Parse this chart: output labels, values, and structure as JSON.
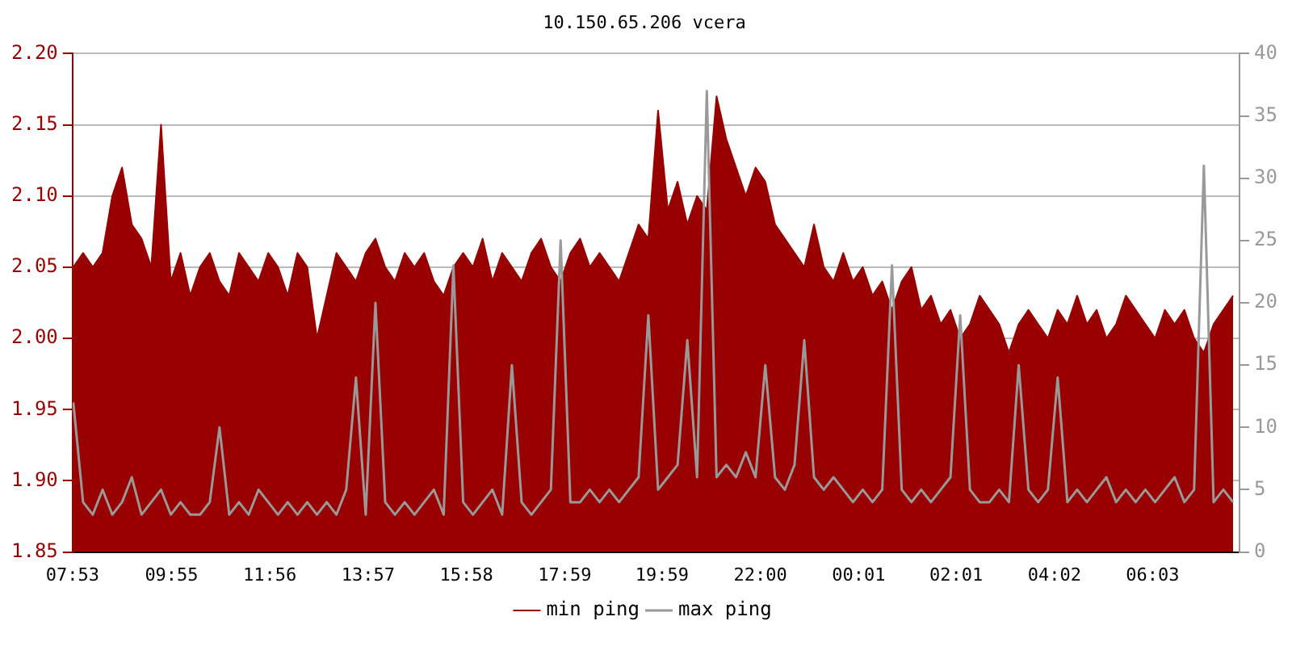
{
  "chart_data": {
    "type": "line",
    "title": "10.150.65.206 vcera",
    "x": [
      "2000-01-01T07:54",
      "2000-01-01T08:06",
      "2000-01-01T08:18",
      "2000-01-01T08:30",
      "2000-01-01T08:42",
      "2000-01-01T08:54",
      "2000-01-01T09:06",
      "2000-01-01T09:18",
      "2000-01-01T09:30",
      "2000-01-01T09:42",
      "2000-01-01T09:54",
      "2000-01-01T10:06",
      "2000-01-01T10:18",
      "2000-01-01T10:30",
      "2000-01-01T10:42",
      "2000-01-01T10:54",
      "2000-01-01T11:06",
      "2000-01-01T11:18",
      "2000-01-01T11:30",
      "2000-01-01T11:42",
      "2000-01-01T11:54",
      "2000-01-01T12:06",
      "2000-01-01T12:18",
      "2000-01-01T12:30",
      "2000-01-01T12:42",
      "2000-01-01T12:54",
      "2000-01-01T13:06",
      "2000-01-01T13:18",
      "2000-01-01T13:30",
      "2000-01-01T13:42",
      "2000-01-01T13:54",
      "2000-01-01T14:06",
      "2000-01-01T14:18",
      "2000-01-01T14:30",
      "2000-01-01T14:42",
      "2000-01-01T14:54",
      "2000-01-01T15:06",
      "2000-01-01T15:18",
      "2000-01-01T15:30",
      "2000-01-01T15:42",
      "2000-01-01T15:54",
      "2000-01-01T16:06",
      "2000-01-01T16:18",
      "2000-01-01T16:30",
      "2000-01-01T16:42",
      "2000-01-01T16:54",
      "2000-01-01T17:06",
      "2000-01-01T17:18",
      "2000-01-01T17:30",
      "2000-01-01T17:42",
      "2000-01-01T17:54",
      "2000-01-01T18:06",
      "2000-01-01T18:18",
      "2000-01-01T18:30",
      "2000-01-01T18:42",
      "2000-01-01T18:54",
      "2000-01-01T19:06",
      "2000-01-01T19:18",
      "2000-01-01T19:30",
      "2000-01-01T19:42",
      "2000-01-01T19:54",
      "2000-01-01T20:06",
      "2000-01-01T20:18",
      "2000-01-01T20:30",
      "2000-01-01T20:42",
      "2000-01-01T20:54",
      "2000-01-01T21:06",
      "2000-01-01T21:18",
      "2000-01-01T21:30",
      "2000-01-01T21:42",
      "2000-01-01T21:54",
      "2000-01-01T22:06",
      "2000-01-01T22:18",
      "2000-01-01T22:30",
      "2000-01-01T22:42",
      "2000-01-01T22:54",
      "2000-01-01T23:06",
      "2000-01-01T23:18",
      "2000-01-01T23:30",
      "2000-01-01T23:42",
      "2000-01-01T23:54",
      "2000-01-02T00:06",
      "2000-01-02T00:18",
      "2000-01-02T00:30",
      "2000-01-02T00:42",
      "2000-01-02T00:54",
      "2000-01-02T01:06",
      "2000-01-02T01:18",
      "2000-01-02T01:30",
      "2000-01-02T01:42",
      "2000-01-02T01:54",
      "2000-01-02T02:06",
      "2000-01-02T02:18",
      "2000-01-02T02:30",
      "2000-01-02T02:42",
      "2000-01-02T02:54",
      "2000-01-02T03:06",
      "2000-01-02T03:18",
      "2000-01-02T03:30",
      "2000-01-02T03:42",
      "2000-01-02T03:54",
      "2000-01-02T04:06",
      "2000-01-02T04:18",
      "2000-01-02T04:30",
      "2000-01-02T04:42",
      "2000-01-02T04:54",
      "2000-01-02T05:06",
      "2000-01-02T05:18",
      "2000-01-02T05:30",
      "2000-01-02T05:42",
      "2000-01-02T05:54",
      "2000-01-02T06:06",
      "2000-01-02T06:18",
      "2000-01-02T06:30",
      "2000-01-02T06:42",
      "2000-01-02T06:54",
      "2000-01-02T07:06",
      "2000-01-02T07:18",
      "2000-01-02T07:30",
      "2000-01-02T07:42"
    ],
    "series": [
      {
        "name": "min ping",
        "type": "area",
        "color": "#990000",
        "values": [
          2.05,
          2.06,
          2.05,
          2.06,
          2.1,
          2.12,
          2.08,
          2.07,
          2.05,
          2.15,
          2.04,
          2.06,
          2.03,
          2.05,
          2.06,
          2.04,
          2.03,
          2.06,
          2.05,
          2.04,
          2.06,
          2.05,
          2.03,
          2.06,
          2.05,
          2.0,
          2.03,
          2.06,
          2.05,
          2.04,
          2.06,
          2.07,
          2.05,
          2.04,
          2.06,
          2.05,
          2.06,
          2.04,
          2.03,
          2.05,
          2.06,
          2.05,
          2.07,
          2.04,
          2.06,
          2.05,
          2.04,
          2.06,
          2.07,
          2.05,
          2.04,
          2.06,
          2.07,
          2.05,
          2.06,
          2.05,
          2.04,
          2.06,
          2.08,
          2.07,
          2.16,
          2.09,
          2.11,
          2.08,
          2.1,
          2.09,
          2.17,
          2.14,
          2.12,
          2.1,
          2.12,
          2.11,
          2.08,
          2.07,
          2.06,
          2.05,
          2.08,
          2.05,
          2.04,
          2.06,
          2.04,
          2.05,
          2.03,
          2.04,
          2.02,
          2.04,
          2.05,
          2.02,
          2.03,
          2.01,
          2.02,
          2.0,
          2.01,
          2.03,
          2.02,
          2.01,
          1.99,
          2.01,
          2.02,
          2.01,
          2.0,
          2.02,
          2.01,
          2.03,
          2.01,
          2.02,
          2.0,
          2.01,
          2.03,
          2.02,
          2.01,
          2.0,
          2.02,
          2.01,
          2.02,
          2.0,
          1.99,
          2.01,
          2.02,
          2.03
        ]
      },
      {
        "name": "max ping",
        "type": "line",
        "axis": "y2",
        "color": "#999999",
        "values": [
          12,
          4,
          3,
          5,
          3,
          4,
          6,
          3,
          4,
          5,
          3,
          4,
          3,
          3,
          4,
          10,
          3,
          4,
          3,
          5,
          4,
          3,
          4,
          3,
          4,
          3,
          4,
          3,
          5,
          14,
          3,
          20,
          4,
          3,
          4,
          3,
          4,
          5,
          3,
          23,
          4,
          3,
          4,
          5,
          3,
          15,
          4,
          3,
          4,
          5,
          25,
          4,
          4,
          5,
          4,
          5,
          4,
          5,
          6,
          19,
          5,
          6,
          7,
          17,
          6,
          37,
          6,
          7,
          6,
          8,
          6,
          15,
          6,
          5,
          7,
          17,
          6,
          5,
          6,
          5,
          4,
          5,
          4,
          5,
          23,
          5,
          4,
          5,
          4,
          5,
          6,
          19,
          5,
          4,
          4,
          5,
          4,
          15,
          5,
          4,
          5,
          14,
          4,
          5,
          4,
          5,
          6,
          4,
          5,
          4,
          5,
          4,
          5,
          6,
          4,
          5,
          31,
          4,
          5,
          4
        ]
      }
    ],
    "xlim": [
      "2000-01-01T07:53",
      "2000-01-02T07:50"
    ],
    "xticks": [
      {
        "value": "2000-01-01T07:53",
        "label": "07:53"
      },
      {
        "value": "2000-01-01T09:55",
        "label": "09:55"
      },
      {
        "value": "2000-01-01T11:56",
        "label": "11:56"
      },
      {
        "value": "2000-01-01T13:57",
        "label": "13:57"
      },
      {
        "value": "2000-01-01T15:58",
        "label": "15:58"
      },
      {
        "value": "2000-01-01T17:59",
        "label": "17:59"
      },
      {
        "value": "2000-01-01T19:59",
        "label": "19:59"
      },
      {
        "value": "2000-01-01T22:00",
        "label": "22:00"
      },
      {
        "value": "2000-01-02T00:01",
        "label": "00:01"
      },
      {
        "value": "2000-01-02T02:01",
        "label": "02:01"
      },
      {
        "value": "2000-01-02T04:02",
        "label": "04:02"
      },
      {
        "value": "2000-01-02T06:03",
        "label": "06:03"
      }
    ],
    "ylim": [
      1.85,
      2.2
    ],
    "yticks": [
      {
        "value": 1.85,
        "label": "1.85"
      },
      {
        "value": 1.9,
        "label": "1.90"
      },
      {
        "value": 1.95,
        "label": "1.95"
      },
      {
        "value": 2.0,
        "label": "2.00"
      },
      {
        "value": 2.05,
        "label": "2.05"
      },
      {
        "value": 2.1,
        "label": "2.10"
      },
      {
        "value": 2.15,
        "label": "2.15"
      },
      {
        "value": 2.2,
        "label": "2.20"
      }
    ],
    "y2lim": [
      0,
      40
    ],
    "y2ticks": [
      0,
      5,
      10,
      15,
      20,
      25,
      30,
      35,
      40
    ],
    "grid": "y",
    "legend": "bottom",
    "marker": "none",
    "line_style": "solid"
  }
}
